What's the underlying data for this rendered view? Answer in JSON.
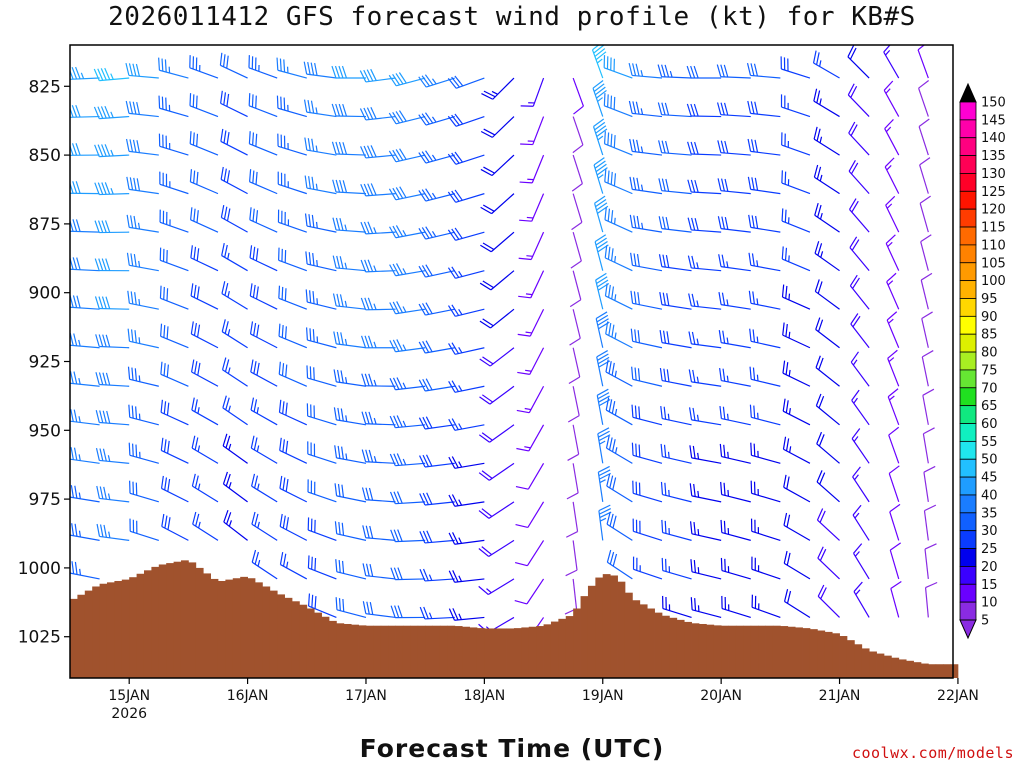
{
  "chart_data": {
    "type": "wind-barb-time-height",
    "title": "2026011412 GFS forecast wind profile (kt) for KB#S",
    "xlabel": "Forecast Time (UTC)",
    "ylabel": "",
    "units": "kt",
    "y_axis": {
      "range": [
        810,
        1040
      ],
      "inverted": true,
      "ticks": [
        825,
        850,
        875,
        900,
        925,
        950,
        975,
        1000,
        1025
      ]
    },
    "x_axis": {
      "range_hours": [
        0,
        179
      ],
      "ticks": [
        {
          "hour": 12,
          "label": "15JAN",
          "sublabel": "2026"
        },
        {
          "hour": 36,
          "label": "16JAN",
          "sublabel": ""
        },
        {
          "hour": 60,
          "label": "17JAN",
          "sublabel": ""
        },
        {
          "hour": 84,
          "label": "18JAN",
          "sublabel": ""
        },
        {
          "hour": 108,
          "label": "19JAN",
          "sublabel": ""
        },
        {
          "hour": 132,
          "label": "20JAN",
          "sublabel": ""
        },
        {
          "hour": 156,
          "label": "21JAN",
          "sublabel": ""
        },
        {
          "hour": 180,
          "label": "22JAN",
          "sublabel": ""
        }
      ]
    },
    "pressure_levels": [
      822,
      836,
      850,
      864,
      878,
      892,
      906,
      920,
      934,
      948,
      962,
      976,
      990,
      1004,
      1018
    ],
    "barb_times": [
      0,
      6,
      12,
      18,
      24,
      30,
      36,
      42,
      48,
      54,
      60,
      66,
      72,
      78,
      84,
      90,
      96,
      102,
      108,
      114,
      120,
      126,
      132,
      138,
      144,
      150,
      156,
      162,
      168,
      174
    ],
    "wind_profile": [
      {
        "hour": 0,
        "speed": 40,
        "dir": 270
      },
      {
        "hour": 12,
        "speed": 45,
        "dir": 265
      },
      {
        "hour": 24,
        "speed": 35,
        "dir": 285
      },
      {
        "hour": 36,
        "speed": 30,
        "dir": 295
      },
      {
        "hour": 48,
        "speed": 35,
        "dir": 285
      },
      {
        "hour": 60,
        "speed": 40,
        "dir": 270
      },
      {
        "hour": 72,
        "speed": 40,
        "dir": 255
      },
      {
        "hour": 84,
        "speed": 30,
        "dir": 250
      },
      {
        "hour": 96,
        "speed": 15,
        "dir": 200
      },
      {
        "hour": 102,
        "speed": 10,
        "dir": 160
      },
      {
        "hour": 108,
        "speed": 45,
        "dir": 340
      },
      {
        "hour": 114,
        "speed": 40,
        "dir": 290
      },
      {
        "hour": 120,
        "speed": 35,
        "dir": 275
      },
      {
        "hour": 132,
        "speed": 30,
        "dir": 270
      },
      {
        "hour": 144,
        "speed": 30,
        "dir": 275
      },
      {
        "hour": 156,
        "speed": 25,
        "dir": 300
      },
      {
        "hour": 168,
        "speed": 15,
        "dir": 330
      },
      {
        "hour": 174,
        "speed": 10,
        "dir": 340
      }
    ],
    "surface_pressure": {
      "hours": [
        0,
        6,
        12,
        18,
        24,
        30,
        36,
        42,
        48,
        54,
        60,
        66,
        72,
        78,
        84,
        90,
        96,
        102,
        105,
        108,
        111,
        114,
        120,
        126,
        132,
        138,
        144,
        150,
        156,
        162,
        168,
        174,
        179
      ],
      "values": [
        1012,
        1006,
        1004,
        999,
        997,
        1005,
        1003,
        1009,
        1014,
        1020,
        1021,
        1021,
        1021,
        1021,
        1022,
        1022,
        1021,
        1017,
        1008,
        1002,
        1003,
        1011,
        1017,
        1020,
        1021,
        1021,
        1021,
        1022,
        1024,
        1030,
        1033,
        1035,
        1035
      ]
    },
    "colorbar": {
      "levels": [
        5,
        10,
        15,
        20,
        25,
        30,
        35,
        40,
        45,
        50,
        55,
        60,
        65,
        70,
        75,
        80,
        85,
        90,
        95,
        100,
        105,
        110,
        115,
        120,
        125,
        130,
        135,
        140,
        145,
        150
      ],
      "colors": [
        "#8a2be2",
        "#6a00ff",
        "#3a00ff",
        "#0000ee",
        "#0a3cff",
        "#1060ff",
        "#1a7dff",
        "#1f9dff",
        "#22c0ff",
        "#20e6ee",
        "#10f0c0",
        "#10e880",
        "#20e020",
        "#66e633",
        "#a8ee22",
        "#ddf000",
        "#ffff00",
        "#ffd700",
        "#ffb200",
        "#ff9a00",
        "#ff8200",
        "#ff6a00",
        "#ff3c00",
        "#ff1400",
        "#ff0028",
        "#ff0055",
        "#ff0080",
        "#ff00aa",
        "#ff00d2",
        "#e800e8"
      ]
    },
    "legend": "right"
  },
  "footer": {
    "credit": "coolwx.com/models"
  },
  "colors": {
    "terrain": "#a0522d",
    "axis": "#000000"
  }
}
